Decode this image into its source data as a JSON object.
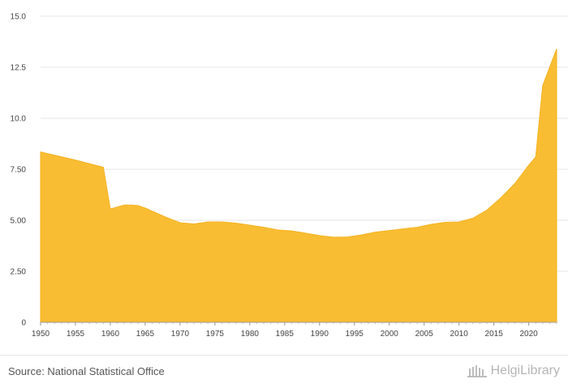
{
  "chart_data": {
    "type": "area",
    "title": "",
    "xlabel": "",
    "ylabel": "",
    "xlim": [
      1950,
      2024
    ],
    "ylim": [
      0,
      15
    ],
    "y_ticks": [
      0,
      2.5,
      5,
      7.5,
      10,
      12.5,
      15
    ],
    "y_tick_labels": [
      "0",
      "2.50",
      "5.00",
      "7.50",
      "10.0",
      "12.5",
      "15.0"
    ],
    "x_ticks": [
      1950,
      1955,
      1960,
      1965,
      1970,
      1975,
      1980,
      1985,
      1990,
      1995,
      2000,
      2005,
      2010,
      2015,
      2020
    ],
    "grid": true,
    "fill_color": "#f9bd33",
    "series": [
      {
        "name": "value",
        "x": [
          1950,
          1955,
          1959,
          1960,
          1961,
          1962,
          1963,
          1964,
          1965,
          1966,
          1968,
          1970,
          1972,
          1974,
          1976,
          1978,
          1980,
          1982,
          1984,
          1986,
          1988,
          1990,
          1992,
          1994,
          1996,
          1998,
          2000,
          2002,
          2004,
          2006,
          2008,
          2010,
          2012,
          2014,
          2016,
          2018,
          2020,
          2021,
          2022,
          2024
        ],
        "values": [
          8.35,
          7.95,
          7.6,
          5.55,
          5.65,
          5.75,
          5.75,
          5.72,
          5.6,
          5.45,
          5.15,
          4.88,
          4.82,
          4.92,
          4.92,
          4.86,
          4.76,
          4.66,
          4.53,
          4.48,
          4.37,
          4.25,
          4.17,
          4.18,
          4.28,
          4.42,
          4.5,
          4.58,
          4.66,
          4.8,
          4.9,
          4.92,
          5.1,
          5.5,
          6.1,
          6.8,
          7.7,
          8.1,
          11.6,
          13.4
        ]
      }
    ]
  },
  "footer": {
    "source": "Source: National Statistical Office",
    "brand": "HelgiLibrary"
  }
}
